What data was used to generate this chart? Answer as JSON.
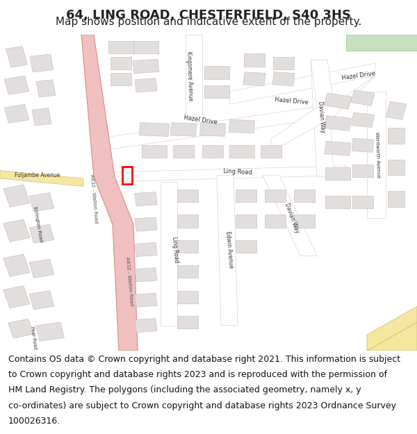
{
  "title": "64, LING ROAD, CHESTERFIELD, S40 3HS",
  "subtitle": "Map shows position and indicative extent of the property.",
  "title_fontsize": 13,
  "subtitle_fontsize": 11,
  "footer_fontsize": 9,
  "bg_color": "#f0eeeb",
  "map_bg": "#f0eeeb",
  "building_color": "#e2dedd",
  "building_edge": "#c8c4c0",
  "road_color": "#ffffff",
  "road_edge": "#d0ccc8",
  "highlight_color": "#ff0000",
  "pink_road_color": "#f0c0c0",
  "pink_road_edge": "#e08888",
  "green_area_color": "#c8dfc0",
  "yellow_road_color": "#f5e6a0",
  "yellow_road_edge": "#d4c070",
  "header_bg": "#ffffff",
  "footer_bg": "#ffffff",
  "footer_lines": [
    "Contains OS data © Crown copyright and database right 2021. This information is subject",
    "to Crown copyright and database rights 2023 and is reproduced with the permission of",
    "HM Land Registry. The polygons (including the associated geometry, namely x, y",
    "co-ordinates) are subject to Crown copyright and database rights 2023 Ordnance Survey",
    "100026316."
  ]
}
